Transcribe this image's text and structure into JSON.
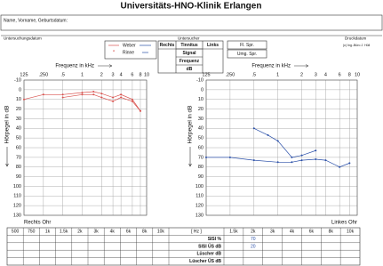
{
  "header": {
    "title": "Universitäts-HNO-Klinik Erlangen",
    "name_label": "Name, Vorname, Geburtsdatum:",
    "exam_date_label": "Untersuchungsdatum",
    "examiner_label": "Untersucher",
    "print_date_label": "Druckdatum",
    "copyright": "(c) Ing.-Büro J. Hüll"
  },
  "legend": {
    "weber": "Weber",
    "rinne": "Rinne"
  },
  "tinnitus_table": {
    "right": "Rechts",
    "tinnitus": "Tinnitus",
    "left": "Links",
    "signal": "Signal",
    "frequency": "Frequenz",
    "db": "dB"
  },
  "speech": {
    "free_field": "Fl. Spr.",
    "ambient": "Umg. Spr."
  },
  "chart_data": [
    {
      "type": "line",
      "x_label": "Frequenz in kHz",
      "y_label": "Hörpegel in dB",
      "ear_label": "Rechts Ohr",
      "log_x": true,
      "y_inverted": true,
      "grid": true,
      "xlim": [
        0.125,
        10
      ],
      "ylim": [
        -10,
        130
      ],
      "xticks": [
        {
          "value": 0.125,
          "label": "125"
        },
        {
          "value": 0.25,
          "label": ".250"
        },
        {
          "value": 0.5,
          "label": ".5"
        },
        1,
        2,
        3,
        4,
        6,
        8,
        10
      ],
      "yticks": [
        -10,
        0,
        10,
        20,
        30,
        40,
        50,
        60,
        70,
        80,
        90,
        100,
        110,
        120,
        130
      ],
      "series": [
        {
          "color": "#d9534f",
          "x": [
            0.125,
            0.25,
            0.5,
            1,
            1.5,
            2,
            3,
            4,
            6,
            8
          ],
          "values": [
            10,
            5,
            5,
            3,
            2,
            4,
            8,
            5,
            10,
            22
          ]
        },
        {
          "color": "#d9534f",
          "x": [
            0.5,
            1,
            1.5,
            2,
            3,
            4,
            6,
            8
          ],
          "values": [
            8,
            5,
            5,
            8,
            12,
            8,
            12,
            22
          ]
        }
      ]
    },
    {
      "type": "line",
      "x_label": "Frequenz in kHz",
      "y_label": "Hörpegel in dB",
      "ear_label": "Linkes Ohr",
      "log_x": true,
      "y_inverted": true,
      "grid": true,
      "xlim": [
        0.125,
        10
      ],
      "ylim": [
        -10,
        130
      ],
      "xticks": [
        {
          "value": 0.125,
          "label": "125"
        },
        {
          "value": 0.25,
          "label": ".250"
        },
        {
          "value": 0.5,
          "label": ".5"
        },
        1,
        2,
        3,
        4,
        6,
        8,
        10
      ],
      "yticks": [
        -10,
        0,
        10,
        20,
        30,
        40,
        50,
        60,
        70,
        80,
        90,
        100,
        110,
        120,
        130
      ],
      "series": [
        {
          "color": "#2a4fa8",
          "x": [
            0.125,
            0.25,
            0.5,
            1,
            1.5,
            2,
            3,
            4,
            6,
            8
          ],
          "values": [
            70,
            70,
            73,
            75,
            75,
            73,
            72,
            73,
            80,
            76
          ]
        },
        {
          "color": "#2a4fa8",
          "x": [
            0.5,
            0.75,
            1,
            1.5,
            2,
            3
          ],
          "values": [
            40,
            47,
            53,
            70,
            68,
            63
          ]
        }
      ]
    }
  ],
  "bottom_table": {
    "left_columns": [
      "500",
      "750",
      "1k",
      "1.5k",
      "2k",
      "3k",
      "4k",
      "6k",
      "8k",
      "10k"
    ],
    "unit": "[ Hz ]",
    "right_columns": [
      "1.5k",
      "2k",
      "3k",
      "4k",
      "6k",
      "8k",
      "10k"
    ],
    "rows": [
      {
        "label": "SISI %",
        "right": [
          null,
          70,
          null,
          null,
          null,
          null,
          null
        ]
      },
      {
        "label": "SISI ÜS dB",
        "right": [
          null,
          20,
          null,
          null,
          null,
          null,
          null
        ]
      },
      {
        "label": "Lüscher dB",
        "right": [
          null,
          null,
          null,
          null,
          null,
          null,
          null
        ]
      },
      {
        "label": "Lüscher ÜS dB",
        "right": [
          null,
          null,
          null,
          null,
          null,
          null,
          null
        ]
      }
    ]
  }
}
